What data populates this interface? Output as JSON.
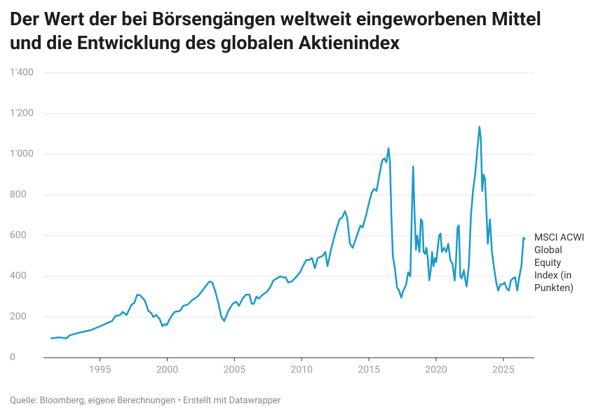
{
  "chart_data": {
    "type": "line",
    "title": "Der Wert der bei Börsengängen weltweit eingeworbenen Mittel und die Entwicklung des globalen Aktienindex",
    "source": "Quelle: Bloomberg, eigene Berechnungen • Erstellt mit Datawrapper",
    "x": [
      1991.34,
      1991.97,
      1992.5,
      1992.75,
      1993.28,
      1993.8,
      1994.3,
      1994.85,
      1995.37,
      1995.9,
      1996.15,
      1996.5,
      1996.7,
      1996.98,
      1997.35,
      1997.56,
      1997.77,
      1998.03,
      1998.34,
      1998.6,
      1998.81,
      1998.97,
      1999.18,
      1999.44,
      1999.65,
      1999.8,
      1999.96,
      2000.27,
      2000.54,
      2000.95,
      2001.2,
      2001.5,
      2001.9,
      2002.26,
      2002.62,
      2002.9,
      2003.15,
      2003.35,
      2003.56,
      2003.8,
      2004.03,
      2004.24,
      2004.55,
      2004.87,
      2005.13,
      2005.34,
      2005.6,
      2005.86,
      2006.12,
      2006.28,
      2006.44,
      2006.64,
      2006.8,
      2007.11,
      2007.43,
      2007.69,
      2007.9,
      2008.16,
      2008.42,
      2008.63,
      2008.8,
      2009.0,
      2009.26,
      2009.57,
      2009.88,
      2010.09,
      2010.35,
      2010.56,
      2010.77,
      2010.98,
      2011.19,
      2011.55,
      2011.76,
      2011.92,
      2012.18,
      2012.49,
      2012.81,
      2013.02,
      2013.22,
      2013.38,
      2013.59,
      2013.8,
      2014.11,
      2014.37,
      2014.53,
      2014.79,
      2015.0,
      2015.2,
      2015.37,
      2015.57,
      2015.78,
      2015.99,
      2016.15,
      2016.3,
      2016.46,
      2016.57,
      2016.67,
      2016.78,
      2016.93,
      2017.09,
      2017.25,
      2017.4,
      2017.56,
      2017.77,
      2017.92,
      2018.08,
      2018.19,
      2018.29,
      2018.4,
      2018.5,
      2018.6,
      2018.76,
      2018.86,
      2018.97,
      2019.07,
      2019.18,
      2019.28,
      2019.39,
      2019.49,
      2019.6,
      2019.7,
      2019.8,
      2019.91,
      2020.01,
      2020.12,
      2020.22,
      2020.33,
      2020.43,
      2020.59,
      2020.75,
      2020.9,
      2021.06,
      2021.22,
      2021.38,
      2021.48,
      2021.59,
      2021.69,
      2021.8,
      2021.9,
      2022.06,
      2022.17,
      2022.27,
      2022.43,
      2022.59,
      2022.74,
      2022.9,
      2023.06,
      2023.22,
      2023.32,
      2023.43,
      2023.53,
      2023.63,
      2023.74,
      2023.84,
      2024.0,
      2024.15,
      2024.31,
      2024.47,
      2024.62,
      2024.78,
      2024.94,
      2025.09,
      2025.25,
      2025.41,
      2025.56,
      2025.72,
      2025.87,
      2026.03,
      2026.19,
      2026.34,
      2026.5,
      2026.6
    ],
    "series": [
      {
        "name": "MSCI ACWI Global Equity Index (in Punkten)",
        "color": "#1a9bc9",
        "values": [
          95,
          100,
          95,
          110,
          120,
          128,
          135,
          150,
          165,
          180,
          205,
          210,
          225,
          210,
          260,
          270,
          310,
          305,
          280,
          230,
          220,
          200,
          210,
          190,
          155,
          165,
          160,
          200,
          225,
          230,
          255,
          260,
          285,
          300,
          330,
          355,
          375,
          370,
          330,
          270,
          200,
          180,
          230,
          265,
          275,
          255,
          290,
          310,
          310,
          265,
          265,
          300,
          290,
          310,
          325,
          350,
          380,
          390,
          400,
          395,
          395,
          370,
          375,
          395,
          420,
          450,
          480,
          480,
          490,
          440,
          490,
          500,
          520,
          450,
          530,
          610,
          680,
          690,
          720,
          690,
          560,
          540,
          600,
          650,
          640,
          700,
          760,
          810,
          830,
          820,
          900,
          970,
          980,
          960,
          1030,
          960,
          700,
          500,
          440,
          345,
          330,
          295,
          330,
          360,
          420,
          400,
          700,
          940,
          700,
          530,
          600,
          520,
          680,
          670,
          520,
          510,
          540,
          480,
          380,
          430,
          520,
          450,
          490,
          470,
          540,
          600,
          610,
          520,
          540,
          520,
          560,
          480,
          460,
          380,
          480,
          640,
          650,
          400,
          390,
          430,
          380,
          350,
          450,
          700,
          820,
          900,
          1020,
          1135,
          1080,
          820,
          900,
          880,
          720,
          560,
          680,
          520,
          440,
          370,
          330,
          360,
          360,
          370,
          340,
          330,
          380,
          390,
          395,
          330,
          400,
          450,
          590,
          580
        ]
      }
    ],
    "xlim": [
      1990.8,
      2027.3
    ],
    "ylim": [
      0,
      1400
    ],
    "xticks": [
      1995,
      2000,
      2005,
      2010,
      2015,
      2020,
      2025
    ],
    "yticks": [
      0,
      200,
      400,
      600,
      800,
      {
        "value": 1000,
        "label": "1'000"
      },
      {
        "value": 1200,
        "label": "1'200"
      },
      {
        "value": 1400,
        "label": "1'400"
      }
    ],
    "grid": true
  }
}
